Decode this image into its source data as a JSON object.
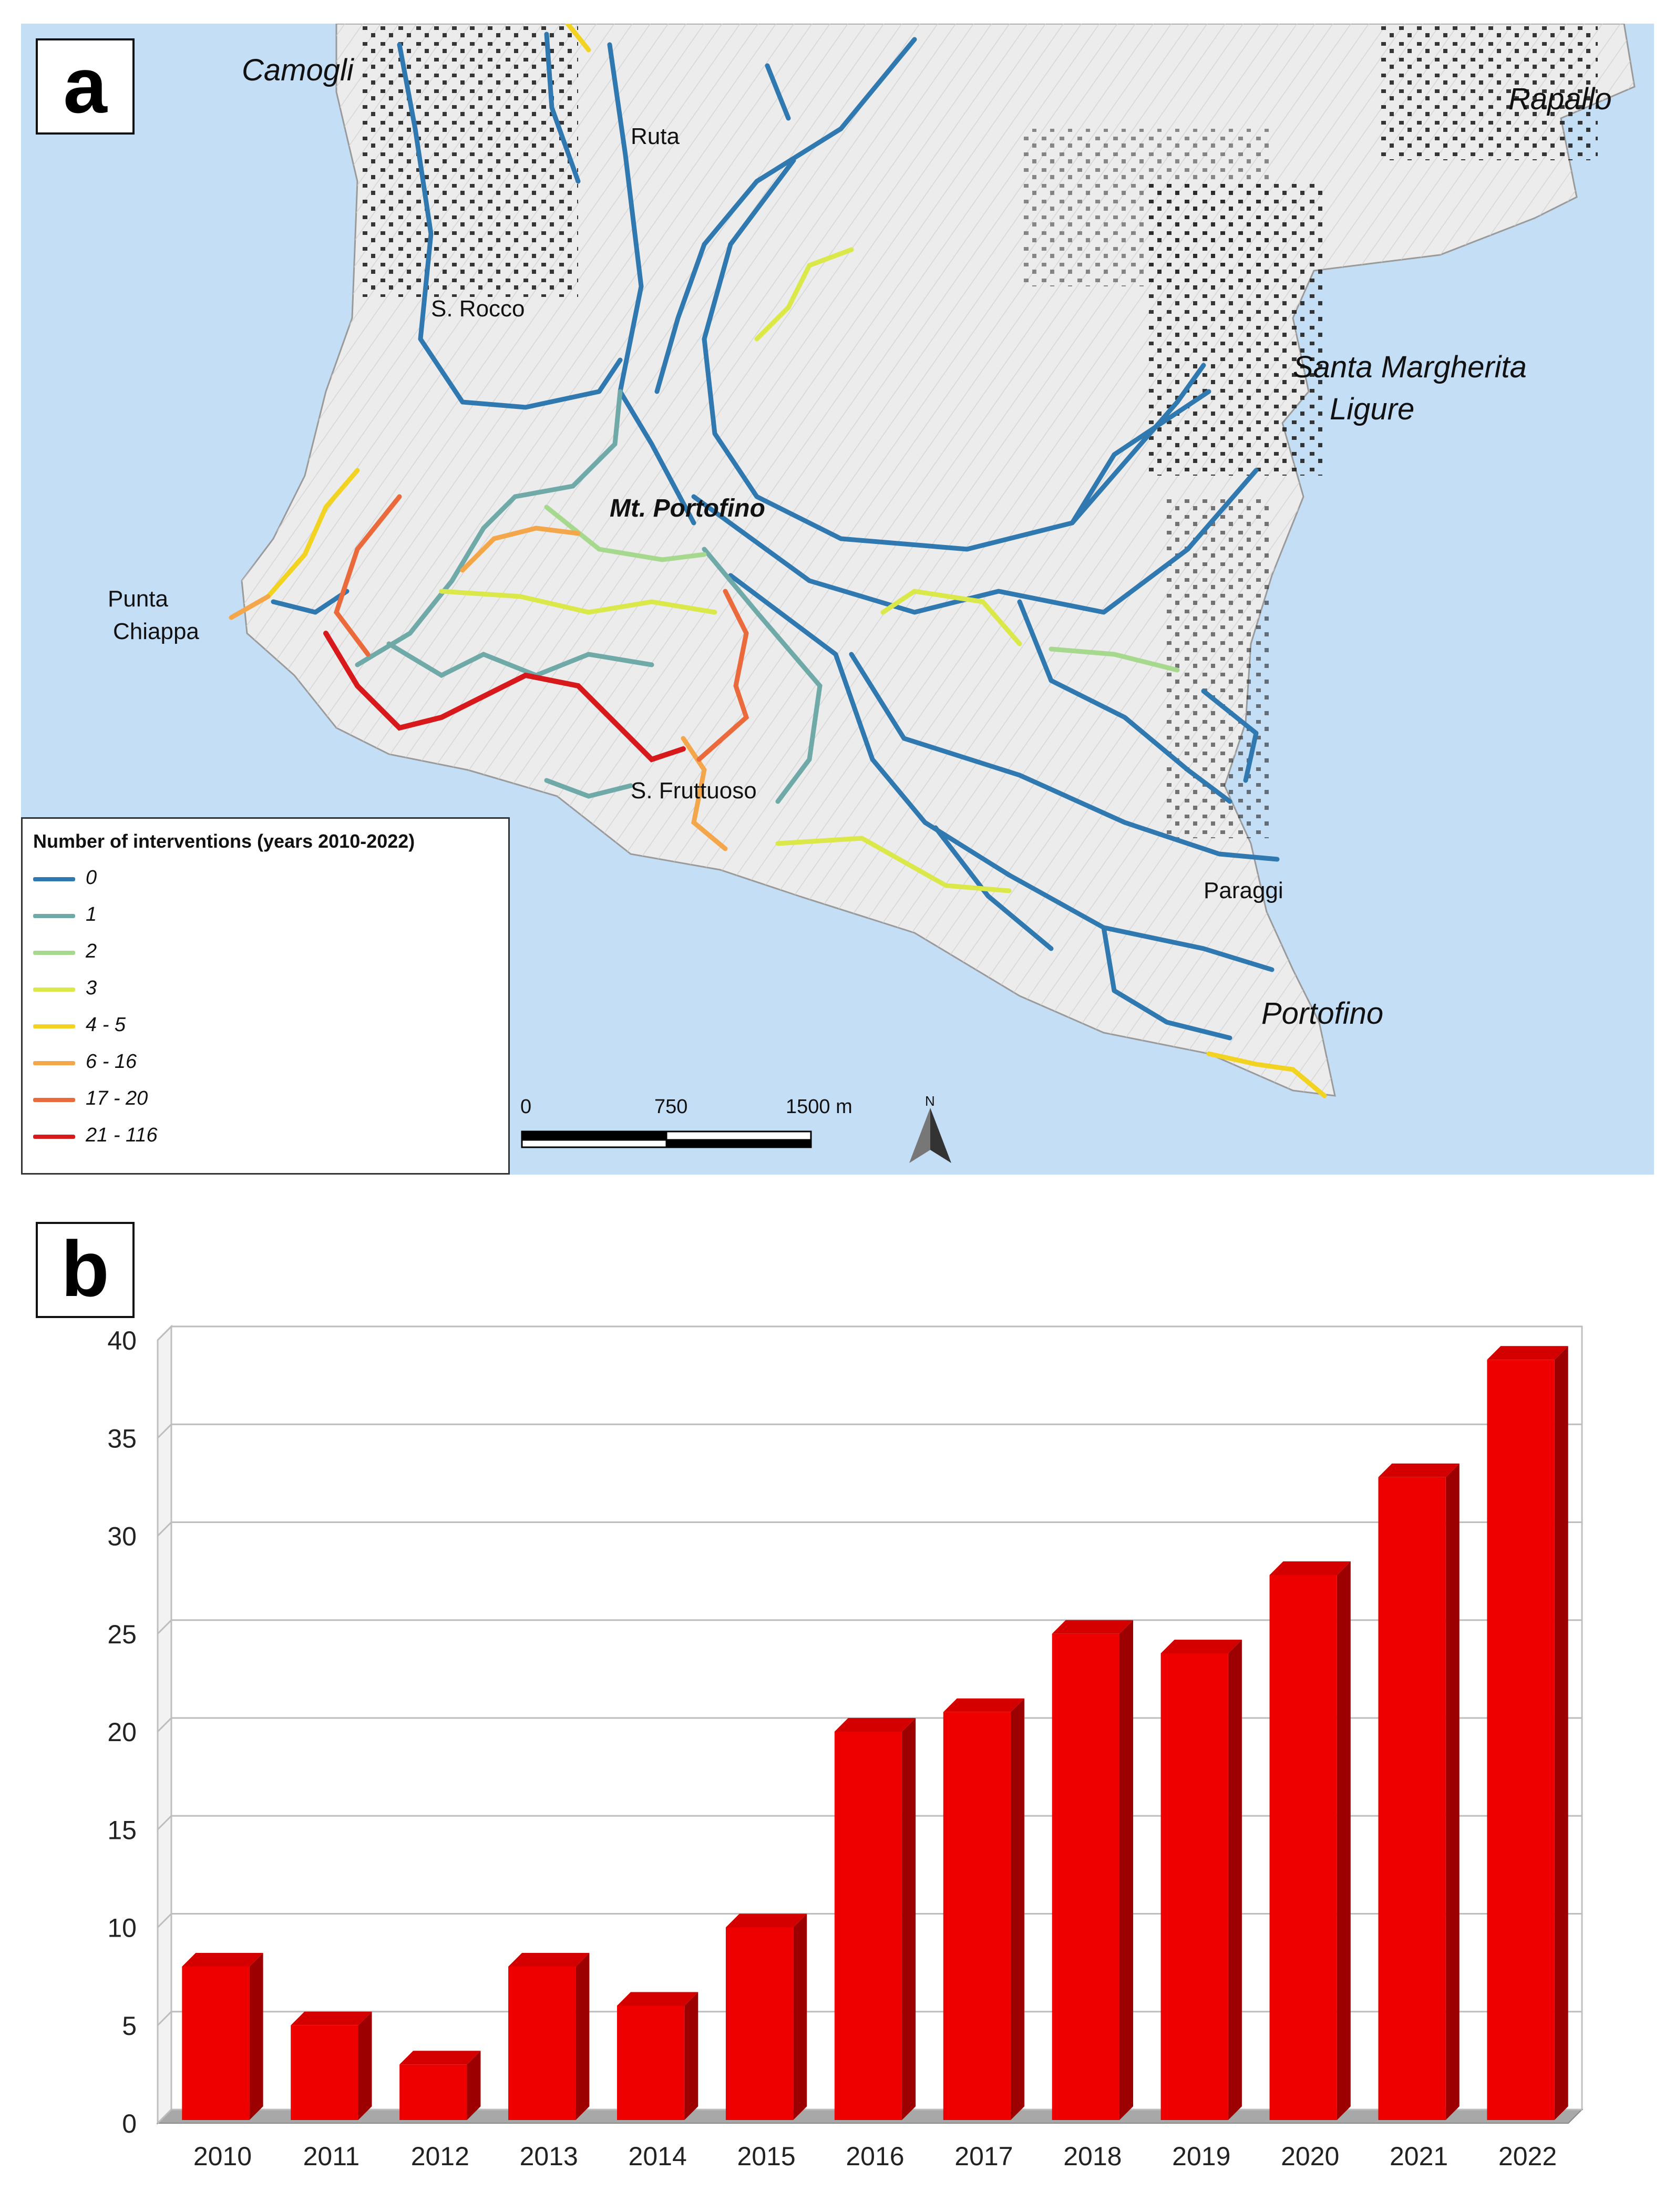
{
  "panels": {
    "a_label": "a",
    "b_label": "b"
  },
  "map": {
    "places": {
      "camogli": "Camogli",
      "rapallo": "Rapallo",
      "ruta": "Ruta",
      "s_rocco": "S. Rocco",
      "santa_margherita_1": "Santa Margherita",
      "santa_margherita_2": "Ligure",
      "mt_portofino": "Mt. Portofino",
      "punta_chiappa_1": "Punta",
      "punta_chiappa_2": "Chiappa",
      "s_fruttuoso": "S. Fruttuoso",
      "paraggi": "Paraggi",
      "portofino": "Portofino"
    },
    "legend": {
      "title": "Number of interventions (years 2010-2022)",
      "items": [
        {
          "label": "0",
          "color": "#2f78b0"
        },
        {
          "label": "1",
          "color": "#6faaa8"
        },
        {
          "label": "2",
          "color": "#a6d98d"
        },
        {
          "label": "3",
          "color": "#dbe84a"
        },
        {
          "label": "4 - 5",
          "color": "#f3d321"
        },
        {
          "label": "6 - 16",
          "color": "#f4a64a"
        },
        {
          "label": "17 - 20",
          "color": "#ea6a3c"
        },
        {
          "label": "21 - 116",
          "color": "#d7191c"
        }
      ]
    },
    "scale": {
      "labels": [
        "0",
        "750",
        "1500 m"
      ]
    },
    "north": "N",
    "colors": {
      "sea": "#c4def6",
      "land": "#ececec",
      "buildings": "#222222"
    }
  },
  "chart_data": {
    "type": "bar",
    "categories": [
      "2010",
      "2011",
      "2012",
      "2013",
      "2014",
      "2015",
      "2016",
      "2017",
      "2018",
      "2019",
      "2020",
      "2021",
      "2022"
    ],
    "values": [
      8,
      5,
      3,
      8,
      6,
      10,
      20,
      21,
      25,
      24,
      28,
      33,
      39
    ],
    "yticks": [
      0,
      5,
      10,
      15,
      20,
      25,
      30,
      35,
      40
    ],
    "ylim": [
      0,
      40
    ],
    "title": "",
    "xlabel": "",
    "ylabel": "",
    "grid": true,
    "bar_color": "#ee0000",
    "style": "3d"
  }
}
